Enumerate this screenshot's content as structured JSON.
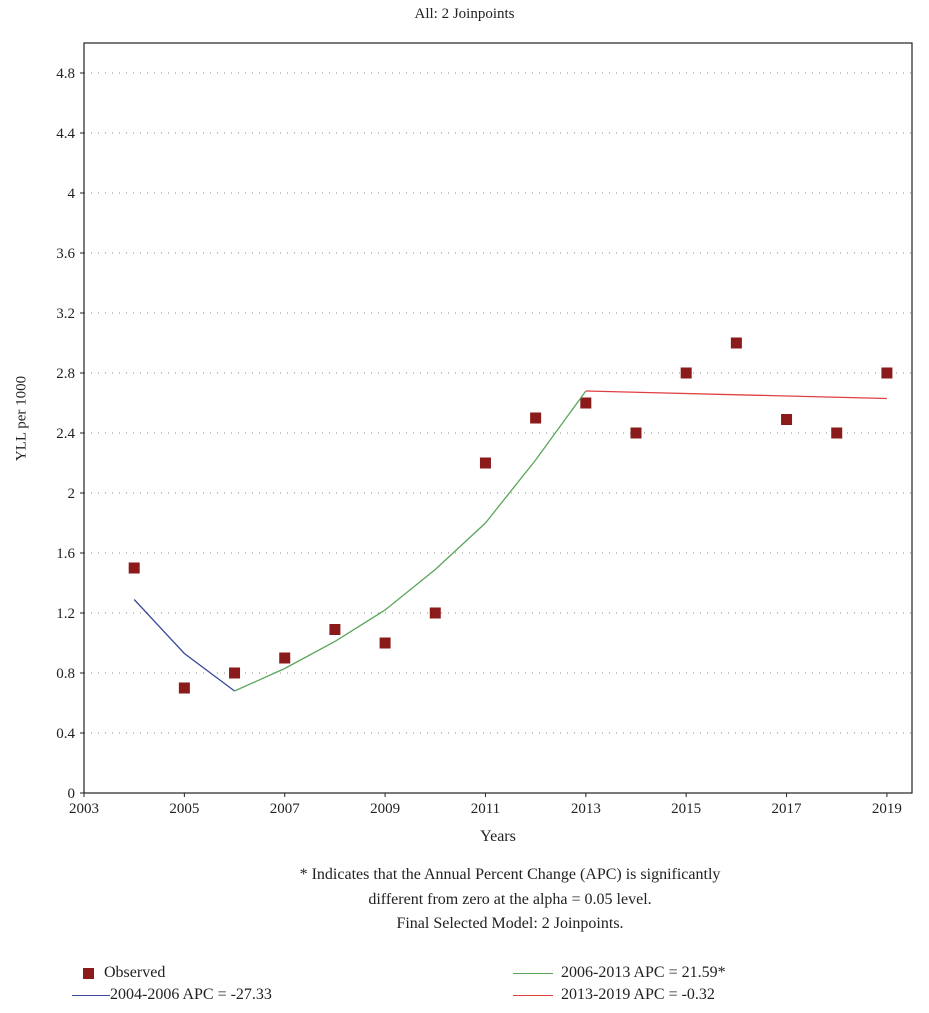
{
  "chart_data": {
    "type": "line",
    "title": "All: 2 Joinpoints",
    "xlabel": "Years",
    "ylabel": "YLL per 1000",
    "xlim": [
      2003,
      2019.5
    ],
    "ylim": [
      0,
      5.0
    ],
    "x_ticks": [
      2003,
      2005,
      2007,
      2009,
      2011,
      2013,
      2015,
      2017,
      2019
    ],
    "y_ticks": [
      0,
      0.4,
      0.8,
      1.2,
      1.6,
      2,
      2.4,
      2.8,
      3.2,
      3.6,
      4,
      4.4,
      4.8
    ],
    "grid": "dotted horizontal",
    "legend_position": "bottom",
    "series": [
      {
        "name": "Observed",
        "kind": "points",
        "color": "#8b1a1a",
        "points": [
          [
            2004,
            1.5
          ],
          [
            2005,
            0.7
          ],
          [
            2006,
            0.8
          ],
          [
            2007,
            0.9
          ],
          [
            2008,
            1.09
          ],
          [
            2009,
            1.0
          ],
          [
            2010,
            1.2
          ],
          [
            2011,
            2.2
          ],
          [
            2012,
            2.5
          ],
          [
            2013,
            2.6
          ],
          [
            2014,
            2.4
          ],
          [
            2015,
            2.8
          ],
          [
            2016,
            3.0
          ],
          [
            2017,
            2.49
          ],
          [
            2018,
            2.4
          ],
          [
            2019,
            2.8
          ]
        ]
      },
      {
        "name": "2004-2006 APC = -27.33",
        "kind": "line",
        "color": "#3a48a0",
        "points": [
          [
            2004,
            1.29
          ],
          [
            2005,
            0.93
          ],
          [
            2006,
            0.68
          ]
        ]
      },
      {
        "name": "2006-2013 APC = 21.59*",
        "kind": "line",
        "color": "#5aa55a",
        "points": [
          [
            2006,
            0.68
          ],
          [
            2007,
            0.83
          ],
          [
            2008,
            1.01
          ],
          [
            2009,
            1.22
          ],
          [
            2010,
            1.49
          ],
          [
            2011,
            1.8
          ],
          [
            2012,
            2.22
          ],
          [
            2013,
            2.68
          ]
        ]
      },
      {
        "name": "2013-2019 APC = -0.32",
        "kind": "line",
        "color": "#e04040",
        "points": [
          [
            2013,
            2.68
          ],
          [
            2019,
            2.63
          ]
        ]
      }
    ]
  },
  "notes": [
    "* Indicates that the Annual Percent Change (APC) is significantly",
    "different from zero at the alpha = 0.05 level.",
    "Final Selected Model: 2 Joinpoints."
  ],
  "legend": {
    "observed": "Observed",
    "seg1": "2004-2006 APC = -27.33",
    "seg2": "2006-2013 APC = 21.59*",
    "seg3": "2013-2019 APC = -0.32"
  }
}
